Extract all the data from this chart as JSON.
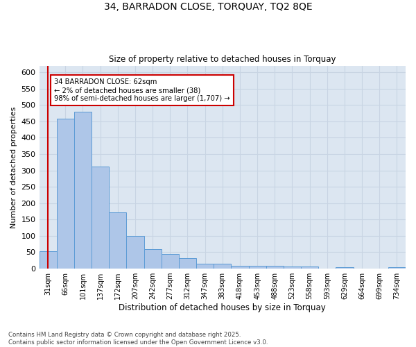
{
  "title_line1": "34, BARRADON CLOSE, TORQUAY, TQ2 8QE",
  "title_line2": "Size of property relative to detached houses in Torquay",
  "xlabel": "Distribution of detached houses by size in Torquay",
  "ylabel": "Number of detached properties",
  "footer_line1": "Contains HM Land Registry data © Crown copyright and database right 2025.",
  "footer_line2": "Contains public sector information licensed under the Open Government Licence v3.0.",
  "categories": [
    "31sqm",
    "66sqm",
    "101sqm",
    "137sqm",
    "172sqm",
    "207sqm",
    "242sqm",
    "277sqm",
    "312sqm",
    "347sqm",
    "383sqm",
    "418sqm",
    "453sqm",
    "488sqm",
    "523sqm",
    "558sqm",
    "593sqm",
    "629sqm",
    "664sqm",
    "699sqm",
    "734sqm"
  ],
  "values": [
    53,
    457,
    480,
    312,
    172,
    100,
    59,
    44,
    31,
    15,
    15,
    9,
    9,
    9,
    7,
    7,
    0,
    4,
    0,
    0,
    4
  ],
  "bar_color": "#aec6e8",
  "bar_edge_color": "#5b9bd5",
  "grid_color": "#c8d4e3",
  "background_color": "#dce6f1",
  "vline_color": "#cc0000",
  "annotation_text": "34 BARRADON CLOSE: 62sqm\n← 2% of detached houses are smaller (38)\n98% of semi-detached houses are larger (1,707) →",
  "annotation_box_color": "#ffffff",
  "annotation_box_edge": "#cc0000",
  "ylim": [
    0,
    620
  ],
  "yticks": [
    0,
    50,
    100,
    150,
    200,
    250,
    300,
    350,
    400,
    450,
    500,
    550,
    600
  ]
}
